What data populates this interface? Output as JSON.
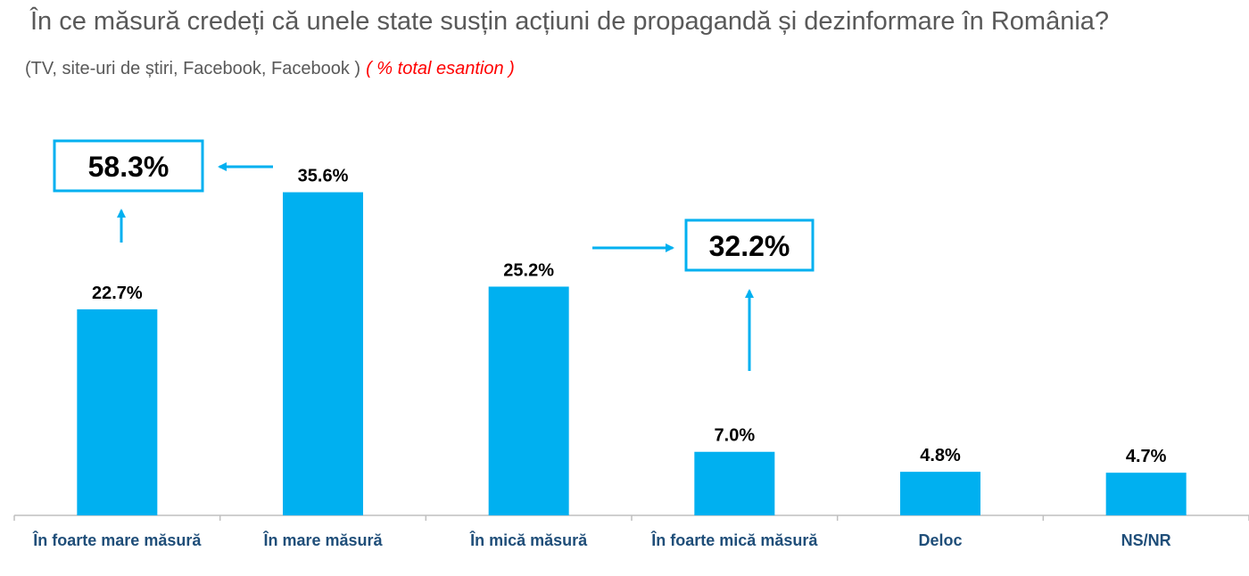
{
  "chart_data": {
    "type": "bar",
    "title": "În ce măsură credeți că unele state susțin acțiuni de propagandă și dezinformare în  România?",
    "subtitle": "(TV, site-uri de știri, Facebook, Facebook )",
    "subtitle_note": "( % total esantion )",
    "categories": [
      "În foarte mare măsură",
      "În mare măsură",
      "În mică măsură",
      "În foarte mică măsură",
      "Deloc",
      "NS/NR"
    ],
    "values": [
      22.7,
      35.6,
      25.2,
      7.0,
      4.8,
      4.7
    ],
    "value_labels": [
      "22.7%",
      "35.6%",
      "25.2%",
      "7.0%",
      "4.8%",
      "4.7%"
    ],
    "ylim": [
      0,
      40
    ],
    "grid": false,
    "annotations": [
      {
        "text": "58.3%",
        "value": 58.3,
        "sum_of": [
          "În foarte mare măsură",
          "În mare măsură"
        ]
      },
      {
        "text": "32.2%",
        "value": 32.2,
        "sum_of": [
          "În mică măsură",
          "În foarte mică măsură"
        ]
      }
    ],
    "colors": {
      "bar": "#00b0f0",
      "box_border": "#00b0f0",
      "arrow": "#00b0f0",
      "category_text": "#1f4e79",
      "axis": "#bfbfbf",
      "note": "#ff0000"
    }
  }
}
